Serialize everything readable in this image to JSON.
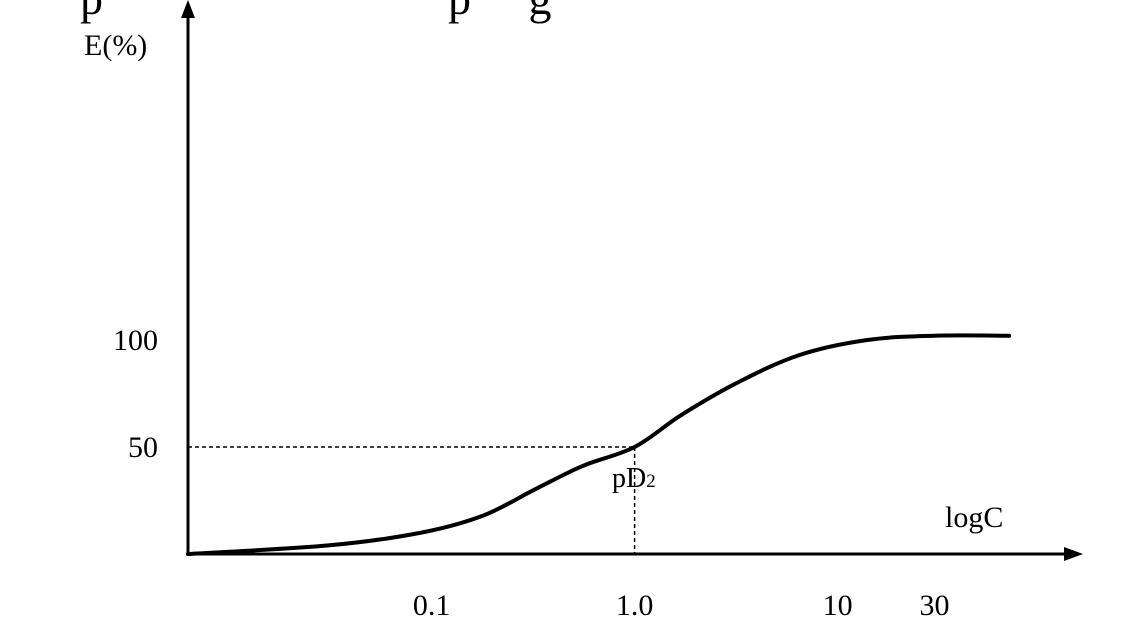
{
  "top_text": "p                              p     g",
  "chart_data": {
    "type": "line",
    "title": "",
    "xlabel": "logC",
    "ylabel": "E(%)",
    "x_ticks": [
      {
        "label": "0.1",
        "value": 0.1
      },
      {
        "label": "1.0",
        "value": 1.0
      },
      {
        "label": "10",
        "value": 10
      },
      {
        "label": "30",
        "value": 30
      }
    ],
    "y_ticks": [
      {
        "label": "50",
        "value": 50
      },
      {
        "label": "100",
        "value": 100
      }
    ],
    "series": [
      {
        "x": [
          0.0063,
          0.031,
          0.089,
          0.18,
          0.32,
          0.55,
          1.0,
          1.7,
          3.2,
          6.5,
          14,
          30,
          70
        ],
        "y": [
          0,
          4,
          10,
          18,
          30,
          41,
          50,
          65,
          80,
          93,
          100,
          102,
          102
        ]
      }
    ],
    "reference_lines": [
      {
        "type": "horizontal",
        "y": 50,
        "x_to": 1.0,
        "style": "dashed"
      },
      {
        "type": "vertical",
        "x": 1.0,
        "y_to": 50,
        "style": "dashed"
      }
    ],
    "annotations": [
      {
        "text": "pD",
        "subscript": "2",
        "x": 1.0,
        "y": 18
      }
    ],
    "xscale": "log",
    "grid": false,
    "legend": "none",
    "color": "#000000"
  }
}
